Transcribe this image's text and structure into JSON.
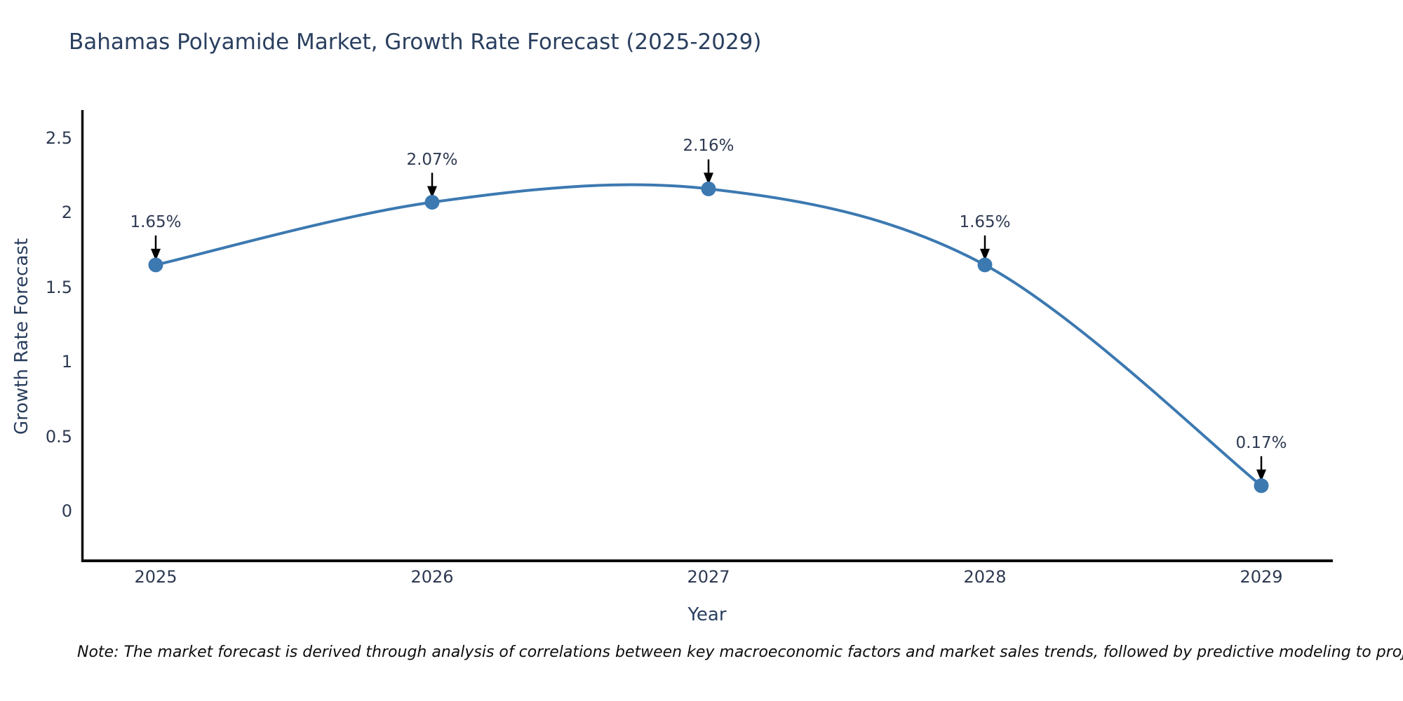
{
  "chart_data": {
    "type": "line",
    "title": "Bahamas Polyamide Market, Growth Rate Forecast (2025-2029)",
    "xlabel": "Year",
    "ylabel": "Growth Rate Forecast",
    "x": [
      2025,
      2026,
      2027,
      2028,
      2029
    ],
    "values": [
      1.65,
      2.07,
      2.16,
      1.65,
      0.17
    ],
    "point_labels": [
      "1.65%",
      "2.07%",
      "2.16%",
      "1.65%",
      "0.17%"
    ],
    "x_tick_labels": [
      "2025",
      "2026",
      "2027",
      "2028",
      "2029"
    ],
    "y_tick_labels": [
      "0",
      "0.5",
      "1",
      "1.5",
      "2",
      "2.5"
    ],
    "y_ticks": [
      0,
      0.5,
      1,
      1.5,
      2,
      2.5
    ],
    "ylim": [
      -0.33,
      2.7
    ],
    "line_shape": "spline",
    "grid": false,
    "legend": "none",
    "line_color": "#3c79b1",
    "marker_color": "#3c79b1",
    "annotation_arrow_color": "#000000",
    "axis_line_color": "#0d0d0d",
    "text_color": "#2a3f5f"
  },
  "footnote": {
    "text": "Note: The market forecast is derived through analysis of correlations between key macroeconomic factors and market sales trends, followed by predictive modeling to project future sales"
  }
}
